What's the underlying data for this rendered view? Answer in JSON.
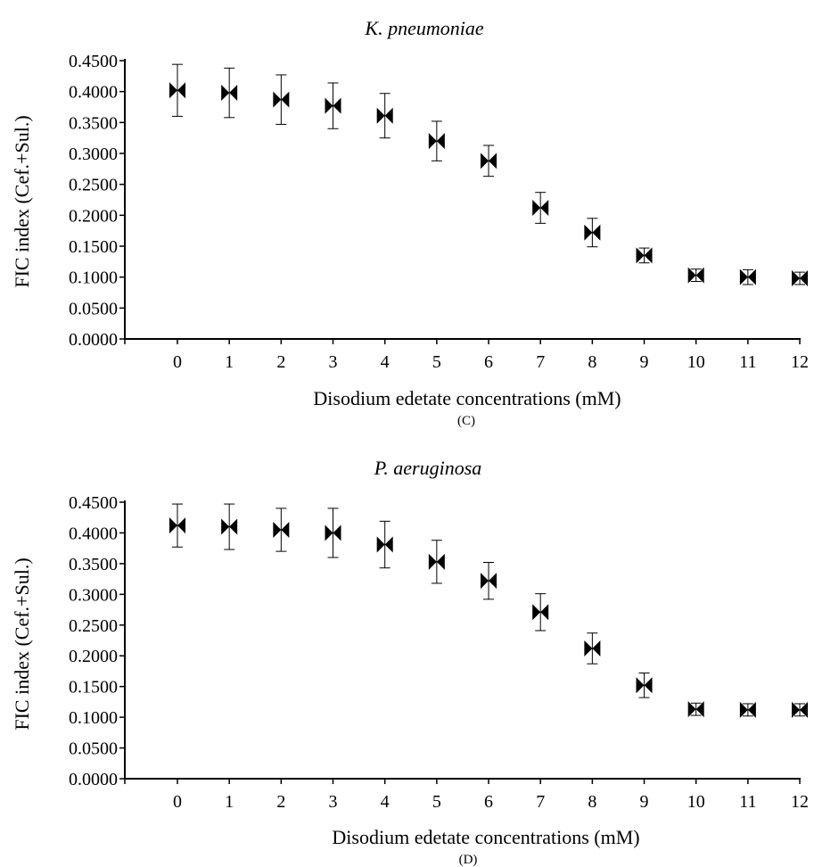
{
  "chart_data": [
    {
      "type": "scatter",
      "title": "K. pneumoniae",
      "panel_label": "(C)",
      "xlabel": "Disodium edetate concentrations (mM)",
      "ylabel": "FIC index (Cef.+Sul.)",
      "ylim": [
        0,
        0.45
      ],
      "xlim": [
        -1,
        12
      ],
      "y_ticks": [
        "0.0000",
        "0.0500",
        "0.1000",
        "0.1500",
        "0.2000",
        "0.2500",
        "0.3000",
        "0.3500",
        "0.4000",
        "0.4500"
      ],
      "x_ticks": [
        "0",
        "1",
        "2",
        "3",
        "4",
        "5",
        "6",
        "7",
        "8",
        "9",
        "10",
        "11",
        "12"
      ],
      "marker": "bowtie",
      "grid": false,
      "points": [
        {
          "x": 0,
          "y": 0.402,
          "err": 0.042
        },
        {
          "x": 1,
          "y": 0.398,
          "err": 0.04
        },
        {
          "x": 2,
          "y": 0.387,
          "err": 0.04
        },
        {
          "x": 3,
          "y": 0.377,
          "err": 0.037
        },
        {
          "x": 4,
          "y": 0.361,
          "err": 0.036
        },
        {
          "x": 5,
          "y": 0.32,
          "err": 0.032
        },
        {
          "x": 6,
          "y": 0.288,
          "err": 0.025
        },
        {
          "x": 7,
          "y": 0.212,
          "err": 0.025
        },
        {
          "x": 8,
          "y": 0.172,
          "err": 0.023
        },
        {
          "x": 9,
          "y": 0.135,
          "err": 0.012
        },
        {
          "x": 10,
          "y": 0.103,
          "err": 0.01
        },
        {
          "x": 11,
          "y": 0.1,
          "err": 0.012
        },
        {
          "x": 12,
          "y": 0.098,
          "err": 0.01
        }
      ]
    },
    {
      "type": "scatter",
      "title": "P. aeruginosa",
      "panel_label": "(D)",
      "xlabel": "Disodium edetate concentrations (mM)",
      "ylabel": "FIC index (Cef.+Sul.)",
      "ylim": [
        0,
        0.45
      ],
      "xlim": [
        -1,
        12
      ],
      "y_ticks": [
        "0.0000",
        "0.0500",
        "0.1000",
        "0.1500",
        "0.2000",
        "0.2500",
        "0.3000",
        "0.3500",
        "0.4000",
        "0.4500"
      ],
      "x_ticks": [
        "0",
        "1",
        "2",
        "3",
        "4",
        "5",
        "6",
        "7",
        "8",
        "9",
        "10",
        "11",
        "12"
      ],
      "marker": "bowtie",
      "grid": false,
      "points": [
        {
          "x": 0,
          "y": 0.412,
          "err": 0.035
        },
        {
          "x": 1,
          "y": 0.41,
          "err": 0.037
        },
        {
          "x": 2,
          "y": 0.405,
          "err": 0.035
        },
        {
          "x": 3,
          "y": 0.4,
          "err": 0.04
        },
        {
          "x": 4,
          "y": 0.381,
          "err": 0.038
        },
        {
          "x": 5,
          "y": 0.353,
          "err": 0.035
        },
        {
          "x": 6,
          "y": 0.322,
          "err": 0.03
        },
        {
          "x": 7,
          "y": 0.271,
          "err": 0.03
        },
        {
          "x": 8,
          "y": 0.212,
          "err": 0.025
        },
        {
          "x": 9,
          "y": 0.152,
          "err": 0.02
        },
        {
          "x": 10,
          "y": 0.113,
          "err": 0.01
        },
        {
          "x": 11,
          "y": 0.112,
          "err": 0.01
        },
        {
          "x": 12,
          "y": 0.112,
          "err": 0.01
        }
      ]
    }
  ]
}
